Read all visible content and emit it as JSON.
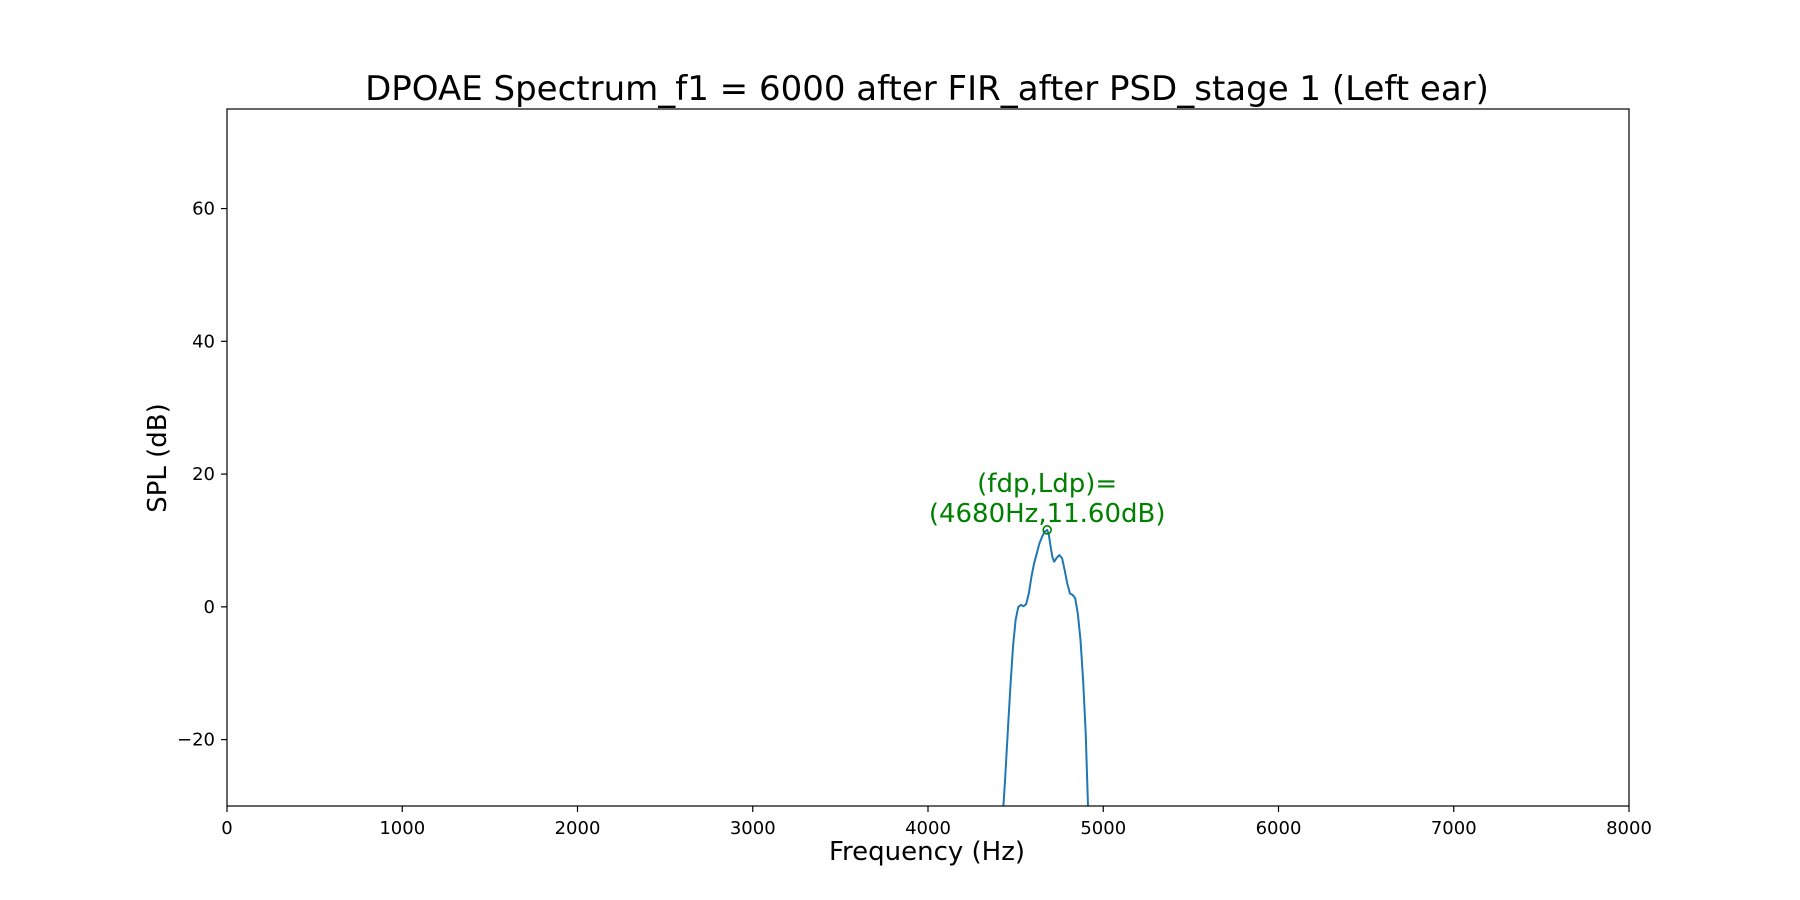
{
  "chart_data": {
    "type": "line",
    "title": "DPOAE Spectrum_f1 = 6000 after FIR_after PSD_stage 1 (Left ear)",
    "xlabel": "Frequency (Hz)",
    "ylabel": "SPL (dB)",
    "xlim": [
      0,
      8000
    ],
    "ylim": [
      -30,
      75
    ],
    "xticks": [
      0,
      1000,
      2000,
      3000,
      4000,
      5000,
      6000,
      7000,
      8000
    ],
    "yticks": [
      -20,
      0,
      20,
      40,
      60
    ],
    "grid": false,
    "series": [
      {
        "color": "#1f77b4",
        "points": [
          [
            4430,
            -30
          ],
          [
            4440,
            -26
          ],
          [
            4455,
            -19
          ],
          [
            4470,
            -12
          ],
          [
            4485,
            -6
          ],
          [
            4500,
            -2
          ],
          [
            4515,
            0
          ],
          [
            4530,
            0.3
          ],
          [
            4545,
            0.1
          ],
          [
            4560,
            0.4
          ],
          [
            4575,
            2
          ],
          [
            4590,
            4.5
          ],
          [
            4605,
            6.5
          ],
          [
            4620,
            8
          ],
          [
            4635,
            9.5
          ],
          [
            4650,
            10.5
          ],
          [
            4665,
            11.3
          ],
          [
            4680,
            11.6
          ],
          [
            4690,
            10.8
          ],
          [
            4700,
            9
          ],
          [
            4710,
            7.5
          ],
          [
            4720,
            6.8
          ],
          [
            4735,
            7.4
          ],
          [
            4750,
            7.8
          ],
          [
            4765,
            7.3
          ],
          [
            4780,
            5.5
          ],
          [
            4795,
            3.5
          ],
          [
            4810,
            2
          ],
          [
            4825,
            1.8
          ],
          [
            4840,
            1.3
          ],
          [
            4855,
            -1
          ],
          [
            4870,
            -5
          ],
          [
            4885,
            -11
          ],
          [
            4900,
            -19
          ],
          [
            4913,
            -30
          ]
        ]
      }
    ],
    "annotations": [
      {
        "line1": "(fdp,Ldp)=",
        "line2": "(4680Hz,11.60dB)",
        "x": 4680,
        "y": 11.6,
        "color": "#008000"
      }
    ]
  }
}
